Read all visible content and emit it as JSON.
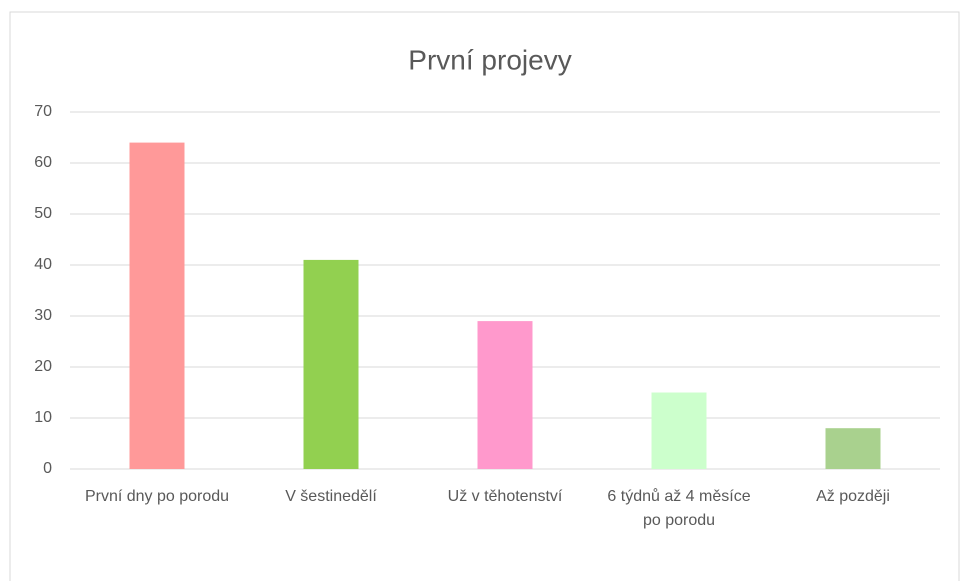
{
  "chart_data": {
    "type": "bar",
    "title": "První projevy",
    "categories": [
      "První dny po porodu",
      "V šestinedělí",
      "Už v těhotenství",
      "6 týdnů až 4 měsíce po porodu",
      "Až později"
    ],
    "values": [
      64,
      41,
      29,
      15,
      8
    ],
    "colors": [
      "#ff9999",
      "#92d050",
      "#ff99cc",
      "#ccffcc",
      "#a9d18e"
    ],
    "ylim": [
      0,
      70
    ],
    "yticks": [
      0,
      10,
      20,
      30,
      40,
      50,
      60,
      70
    ],
    "grid": true
  }
}
